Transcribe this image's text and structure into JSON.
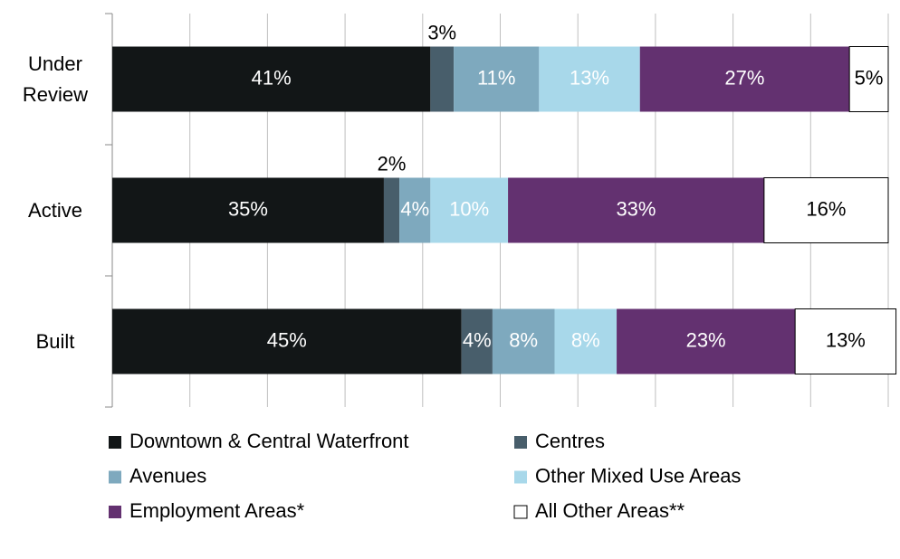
{
  "chart_data": {
    "type": "stacked-barh",
    "categories": [
      "Under Review",
      "Active",
      "Built"
    ],
    "series": [
      {
        "name": "Downtown & Central Waterfront",
        "color": "#121617",
        "values": [
          41,
          35,
          45
        ],
        "value_labels": [
          "41%",
          "35%",
          "45%"
        ]
      },
      {
        "name": "Centres",
        "color": "#485e6b",
        "values": [
          3,
          2,
          4
        ],
        "value_labels": [
          "3%",
          "2%",
          "4%"
        ]
      },
      {
        "name": "Avenues",
        "color": "#7ea9be",
        "values": [
          11,
          4,
          8
        ],
        "value_labels": [
          "11%",
          "4%",
          "8%"
        ]
      },
      {
        "name": "Other Mixed Use Areas",
        "color": "#a8d8ea",
        "values": [
          13,
          10,
          8
        ],
        "value_labels": [
          "13%",
          "10%",
          "8%"
        ]
      },
      {
        "name": "Employment Areas*",
        "color": "#633170",
        "values": [
          27,
          33,
          23
        ],
        "value_labels": [
          "27%",
          "33%",
          "23%"
        ]
      },
      {
        "name": "All Other Areas**",
        "color": "#ffffff",
        "values": [
          5,
          16,
          13
        ],
        "value_labels": [
          "5%",
          "16%",
          "13%"
        ]
      }
    ],
    "xlim": [
      0,
      100
    ],
    "xticks": [
      0,
      10,
      20,
      30,
      40,
      50,
      60,
      70,
      80,
      90,
      100
    ],
    "grid": true
  }
}
